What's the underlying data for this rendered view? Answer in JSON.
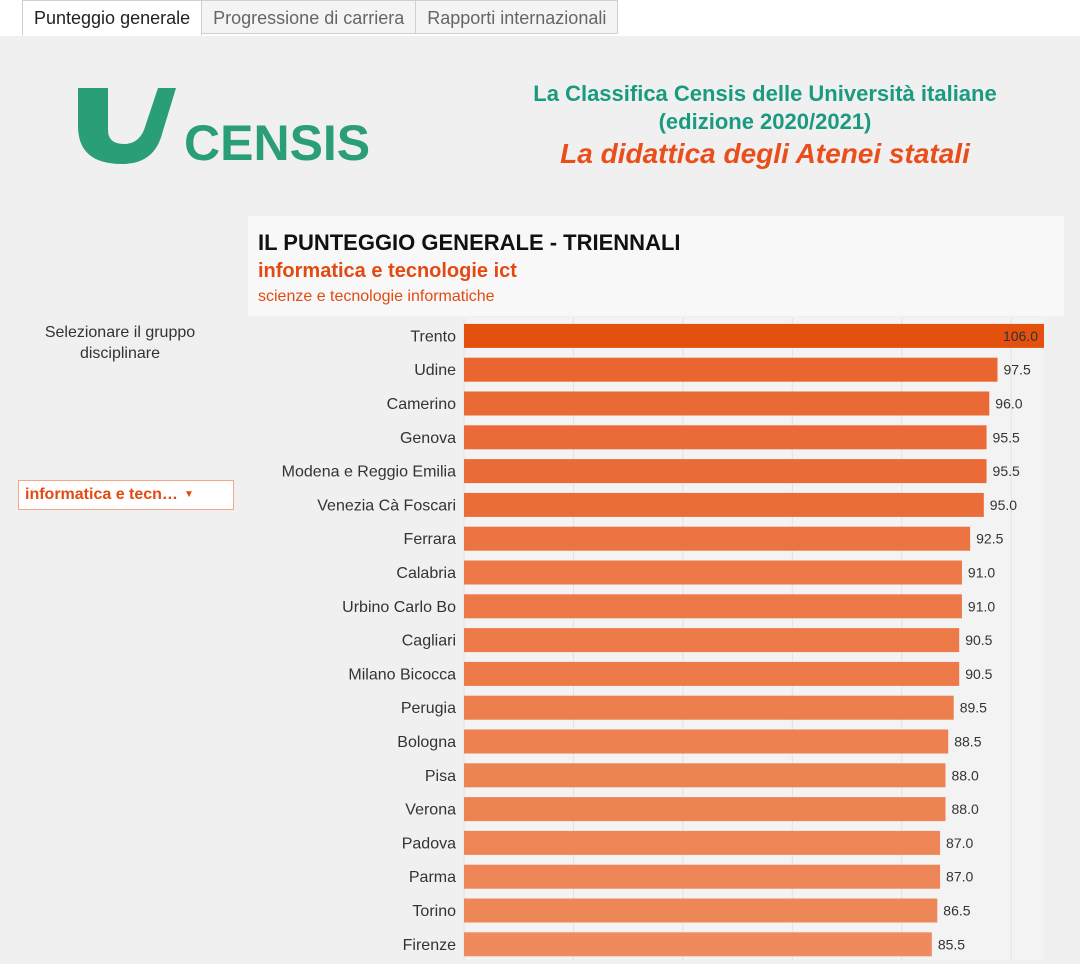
{
  "tabs": [
    {
      "label": "Punteggio generale",
      "active": true
    },
    {
      "label": "Progressione di carriera",
      "active": false
    },
    {
      "label": "Rapporti internazionali",
      "active": false
    }
  ],
  "logo": {
    "text": "CENSIS",
    "color": "#2a9e77"
  },
  "header": {
    "line1": "La Classifica Censis delle Università italiane",
    "line2": "(edizione 2020/2021)",
    "line3": "La didattica degli Atenei statali"
  },
  "chart_title": {
    "main": "IL PUNTEGGIO GENERALE - TRIENNALI",
    "group": "informatica e tecnologie ict",
    "course": "scienze e tecnologie informatiche"
  },
  "selector": {
    "label": "Selezionare il gruppo disciplinare",
    "value": "informatica e tecn…"
  },
  "colors": {
    "accent_orange": "#e34a12",
    "title_green": "#1a9a80",
    "bar_top": "#e4500e",
    "bar_low": "#ee8a5c"
  },
  "chart_data": {
    "type": "bar",
    "orientation": "horizontal",
    "categories": [
      "Trento",
      "Udine",
      "Camerino",
      "Genova",
      "Modena e Reggio Emilia",
      "Venezia Cà Foscari",
      "Ferrara",
      "Calabria",
      "Urbino Carlo Bo",
      "Cagliari",
      "Milano Bicocca",
      "Perugia",
      "Bologna",
      "Pisa",
      "Verona",
      "Padova",
      "Parma",
      "Torino",
      "Firenze"
    ],
    "values": [
      106.0,
      97.5,
      96.0,
      95.5,
      95.5,
      95.0,
      92.5,
      91.0,
      91.0,
      90.5,
      90.5,
      89.5,
      88.5,
      88.0,
      88.0,
      87.0,
      87.0,
      86.5,
      85.5
    ],
    "value_labels": [
      "106.0",
      "97.5",
      "96.0",
      "95.5",
      "95.5",
      "95.0",
      "92.5",
      "91.0",
      "91.0",
      "90.5",
      "90.5",
      "89.5",
      "88.5",
      "88.0",
      "88.0",
      "87.0",
      "87.0",
      "86.5",
      "85.5"
    ],
    "xlim": [
      0,
      106
    ],
    "grid": true
  }
}
